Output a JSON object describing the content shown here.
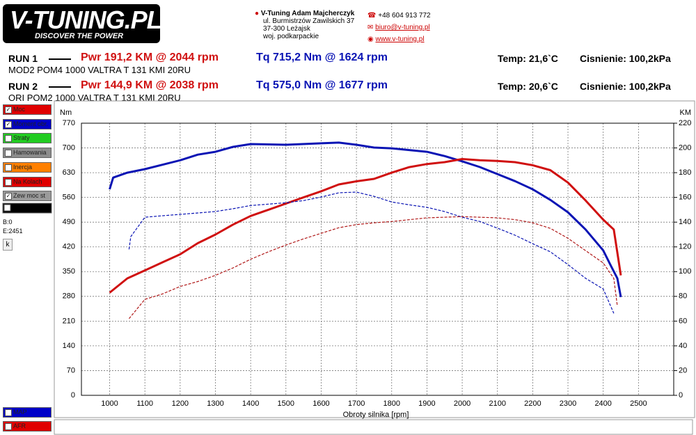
{
  "header": {
    "logo": "V-TUNING.PL",
    "slogan": "DISCOVER THE POWER",
    "company": "V-Tuning Adam Majcherczyk",
    "street": "ul. Burmistrzów Zawilskich 37",
    "city": "37-300 Leżajsk",
    "region": "woj. podkarpackie",
    "phone": "+48 604 913 772",
    "email": "biuro@v-tuning.pl",
    "www": "www.v-tuning.pl"
  },
  "runs": [
    {
      "label": "RUN 1",
      "power": "Pwr  191,2 KM @ 2044 rpm",
      "torque": "Tq 715,2 Nm @ 1624 rpm",
      "temp": "Temp: 21,6`C",
      "pressure": "Cisnienie: 100,2kPa",
      "description": "MOD2 POM4 1000 VALTRA T 131 KMI 20RU"
    },
    {
      "label": "RUN 2",
      "power": "Pwr  144,9 KM @ 2038 rpm",
      "torque": "Tq 575,0 Nm @ 1677 rpm",
      "temp": "Temp: 20,6`C",
      "pressure": "Cisnienie: 100,2kPa",
      "description": "ORI POM2 1000 VALTRA T 131 KMI 20RU"
    }
  ],
  "panel": {
    "items": [
      {
        "label": "Moc",
        "color": "#e00000",
        "checked": true
      },
      {
        "label": "Moment obr.",
        "color": "#0000c8",
        "checked": true
      },
      {
        "label": "Straty",
        "color": "#22cc22",
        "checked": false
      },
      {
        "label": "Hamowania",
        "color": "#8c8c8c",
        "checked": false
      },
      {
        "label": "Inercja",
        "color": "#ff8000",
        "checked": false
      },
      {
        "label": "Na Kolach",
        "color": "#e00000",
        "checked": false
      },
      {
        "label": "Zew moc st",
        "color": "#9a9a9a",
        "checked": true
      }
    ],
    "begin": "B:0",
    "end": "E:2451",
    "button": "k",
    "bottom_items": [
      {
        "label": "MAP",
        "color": "#0000c8"
      },
      {
        "label": "AFR",
        "color": "#e00000"
      }
    ]
  },
  "chart_data": {
    "type": "line",
    "y_label": "Nm",
    "y2_label": "KM",
    "x_label": "Obroty silnika [rpm]",
    "xlim": [
      920,
      2600
    ],
    "xticks": [
      1000,
      1100,
      1200,
      1300,
      1400,
      1500,
      1600,
      1700,
      1800,
      1900,
      2000,
      2100,
      2200,
      2300,
      2400,
      2500
    ],
    "ylim": [
      0,
      770
    ],
    "yticks": [
      0,
      70,
      140,
      210,
      280,
      350,
      420,
      490,
      560,
      630,
      700,
      770
    ],
    "y2lim": [
      0,
      220
    ],
    "y2ticks": [
      0,
      20,
      40,
      60,
      80,
      100,
      120,
      140,
      160,
      180,
      200,
      220
    ],
    "grid": true,
    "series": [
      {
        "color": "#0a14b4",
        "dashed": false,
        "axis": "y",
        "x": [
          1000,
          1010,
          1050,
          1100,
          1200,
          1250,
          1300,
          1350,
          1400,
          1500,
          1600,
          1650,
          1700,
          1750,
          1800,
          1900,
          1950,
          2000,
          2050,
          2100,
          2150,
          2200,
          2250,
          2300,
          2350,
          2400,
          2420,
          2440,
          2450
        ],
        "values": [
          583,
          616,
          630,
          640,
          665,
          681,
          689,
          703,
          711,
          709,
          713,
          715,
          709,
          701,
          699,
          689,
          677,
          662,
          646,
          626,
          606,
          583,
          553,
          518,
          469,
          410,
          370,
          331,
          278
        ]
      },
      {
        "color": "#d01010",
        "dashed": false,
        "axis": "y2",
        "x": [
          1000,
          1050,
          1100,
          1150,
          1200,
          1250,
          1300,
          1350,
          1400,
          1450,
          1500,
          1550,
          1600,
          1650,
          1700,
          1750,
          1800,
          1850,
          1900,
          1950,
          2000,
          2050,
          2100,
          2150,
          2200,
          2250,
          2300,
          2350,
          2400,
          2430,
          2450
        ],
        "values": [
          83,
          94.5,
          101,
          107.5,
          114,
          123,
          130,
          138,
          145,
          150,
          155,
          160,
          165,
          170.5,
          173,
          175,
          180,
          184.5,
          187,
          188.5,
          191,
          190,
          189.5,
          188.5,
          186,
          182,
          172,
          157.5,
          142,
          134,
          97
        ]
      },
      {
        "color": "#0a14b4",
        "dashed": true,
        "axis": "y",
        "x": [
          1055,
          1060,
          1100,
          1150,
          1200,
          1250,
          1300,
          1350,
          1400,
          1450,
          1500,
          1550,
          1600,
          1650,
          1700,
          1750,
          1800,
          1850,
          1900,
          1950,
          2000,
          2050,
          2100,
          2150,
          2200,
          2250,
          2300,
          2350,
          2400,
          2430
        ],
        "values": [
          413,
          449,
          504,
          508,
          512,
          516,
          520,
          528,
          537,
          541,
          545,
          551,
          561,
          573,
          575,
          563,
          547,
          539,
          532,
          520,
          504,
          492,
          473,
          453,
          429,
          406,
          370,
          331,
          301,
          232
        ]
      },
      {
        "color": "#b01818",
        "dashed": true,
        "axis": "y2",
        "x": [
          1055,
          1100,
          1150,
          1200,
          1250,
          1300,
          1350,
          1400,
          1450,
          1500,
          1550,
          1600,
          1650,
          1700,
          1750,
          1800,
          1850,
          1900,
          1950,
          2000,
          2050,
          2100,
          2150,
          2200,
          2250,
          2300,
          2350,
          2400,
          2430,
          2440
        ],
        "values": [
          62,
          77.6,
          82,
          88,
          92,
          97,
          103,
          110,
          116,
          121.5,
          126.5,
          131,
          135.5,
          138,
          139.5,
          140.5,
          142,
          143.5,
          144,
          144.5,
          144,
          143.5,
          142,
          139.5,
          135,
          127,
          117,
          107,
          94.5,
          72
        ]
      }
    ]
  }
}
